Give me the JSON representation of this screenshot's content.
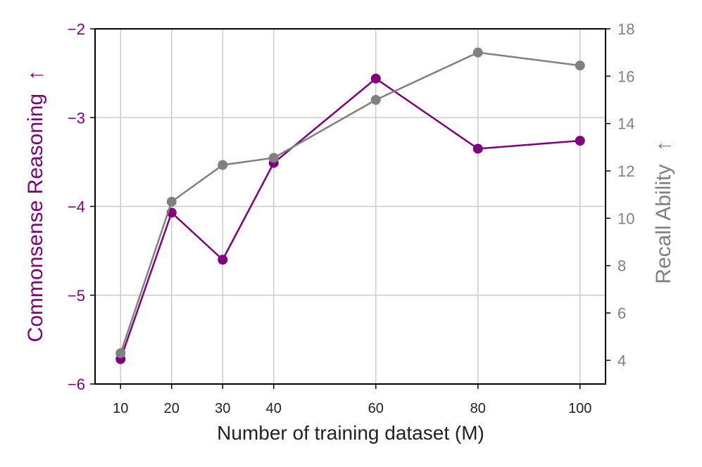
{
  "chart_data": {
    "type": "line",
    "xlabel": "Number of training dataset (M)",
    "x": [
      10,
      20,
      30,
      40,
      60,
      80,
      100
    ],
    "xticks": [
      "10",
      "20",
      "30",
      "40",
      "60",
      "80",
      "100"
    ],
    "xlim": [
      5,
      105
    ],
    "grid": true,
    "y_left": {
      "label": "Commonsense Reasoning",
      "arrow": "↑",
      "ylim": [
        -6,
        -2
      ],
      "ticks": [
        "−6",
        "−5",
        "−4",
        "−3",
        "−2"
      ],
      "tick_values": [
        -6,
        -5,
        -4,
        -3,
        -2
      ],
      "color": "#800080"
    },
    "y_right": {
      "label": "Recall Ability",
      "arrow": "↑",
      "ylim": [
        3,
        18
      ],
      "ticks": [
        "4",
        "6",
        "8",
        "10",
        "12",
        "14",
        "16",
        "18"
      ],
      "tick_values": [
        4,
        6,
        8,
        10,
        12,
        14,
        16,
        18
      ],
      "color": "#808080"
    },
    "series": [
      {
        "axis": "left",
        "color": "#800080",
        "values": [
          -5.72,
          -4.07,
          -4.6,
          -3.51,
          -2.56,
          -3.35,
          -3.26
        ]
      },
      {
        "axis": "right",
        "color": "#808080",
        "values": [
          4.3,
          10.7,
          12.25,
          12.55,
          15.0,
          17.0,
          16.45
        ]
      }
    ]
  }
}
